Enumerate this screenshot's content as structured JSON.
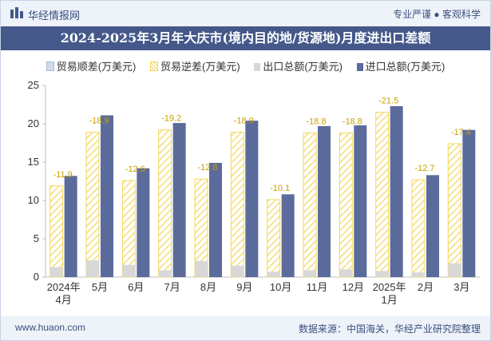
{
  "header": {
    "brand": "华经情报网",
    "tagline": "专业严谨 ● 客观科学",
    "title": "2024-2025年3月年大庆市(境内目的地/货源地)月度进出口差额"
  },
  "footer": {
    "site": "www.huaon.com",
    "source": "数据来源：中国海关，华经产业研究院整理"
  },
  "colors": {
    "import": "#5b6b9b",
    "export": "#d8d8d8",
    "deficit": "#f4d75a",
    "surplus": "#cfdce8",
    "header_band": "#44598a"
  },
  "chart_data": {
    "type": "bar",
    "categories": [
      "2024年\n4月",
      "5月",
      "6月",
      "7月",
      "8月",
      "9月",
      "10月",
      "11月",
      "12月",
      "2025年\n1月",
      "2月",
      "3月"
    ],
    "series": [
      {
        "name": "贸易顺差(万美元)",
        "values": [
          0,
          0,
          0,
          0,
          0,
          0,
          0,
          0,
          0,
          0,
          0,
          0
        ]
      },
      {
        "name": "贸易逆差(万美元)",
        "values": [
          -11.9,
          -18.9,
          -12.6,
          -19.2,
          -12.8,
          -18.9,
          -10.1,
          -18.8,
          -18.8,
          -21.5,
          -12.7,
          -17.4
        ]
      },
      {
        "name": "出口总额(万美元)",
        "values": [
          1.3,
          2.2,
          1.6,
          0.9,
          2.1,
          1.5,
          0.7,
          0.9,
          1.0,
          0.8,
          0.6,
          1.8
        ]
      },
      {
        "name": "进口总额(万美元)",
        "values": [
          13.2,
          21.1,
          14.2,
          20.1,
          14.9,
          20.4,
          10.8,
          19.7,
          19.8,
          22.3,
          13.3,
          19.2
        ]
      }
    ],
    "data_labels": [
      "-11.9",
      "-18.9",
      "-12.6",
      "-19.2",
      "-12.8",
      "-18.9",
      "-10.1",
      "-18.8",
      "-18.8",
      "-21.5",
      "-12.7",
      "-17.4"
    ],
    "yticks": [
      0,
      5,
      10,
      15,
      20,
      25
    ],
    "ylim": [
      0,
      25
    ],
    "grid": false,
    "legend": "top-center"
  }
}
